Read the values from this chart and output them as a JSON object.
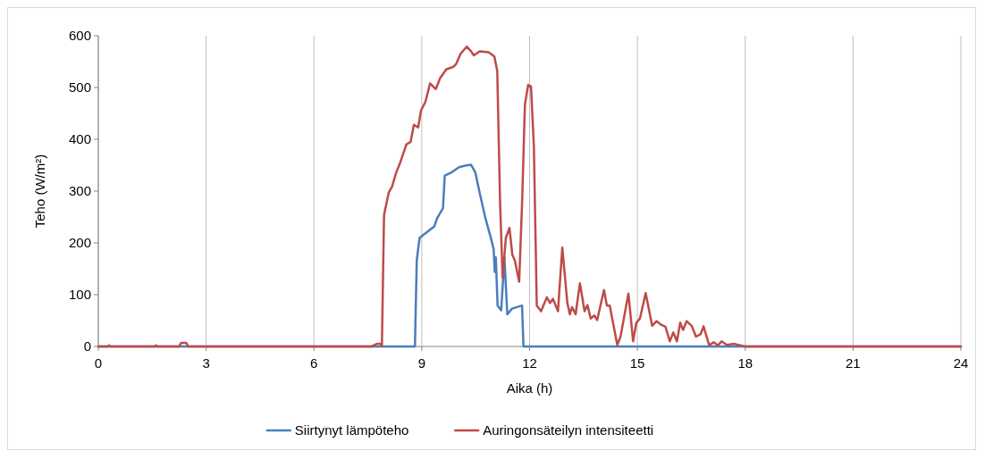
{
  "chart_data": {
    "type": "line",
    "xlabel": "Aika (h)",
    "ylabel": "Teho (W/m²)",
    "xlim": [
      0,
      24
    ],
    "xticks": [
      0,
      3,
      6,
      9,
      12,
      15,
      18,
      21,
      24
    ],
    "ylim": [
      0,
      600
    ],
    "yticks": [
      0,
      100,
      200,
      300,
      400,
      500,
      600
    ],
    "grid": "x",
    "legend": "bottom",
    "marker": "none",
    "line_style": "solid",
    "series": [
      {
        "name": "Siirtynyt lämpöteho",
        "color": "#4a7ebb",
        "x": [
          0,
          8.81,
          8.86,
          8.94,
          9.15,
          9.35,
          9.43,
          9.59,
          9.64,
          9.8,
          10.04,
          10.2,
          10.37,
          10.49,
          10.61,
          10.77,
          10.92,
          11.0,
          11.03,
          11.06,
          11.11,
          11.21,
          11.3,
          11.38,
          11.51,
          11.79,
          11.83,
          24
        ],
        "values": [
          0,
          0,
          166,
          210,
          221,
          232,
          248,
          267,
          330,
          335,
          346,
          349,
          351,
          336,
          297,
          248,
          210,
          188,
          144,
          172,
          79,
          70,
          172,
          62,
          73,
          79,
          0,
          0
        ]
      },
      {
        "name": "Auringonsäteilyn intensiteetti",
        "color": "#be4b48",
        "x": [
          0,
          0.25,
          0.3,
          0.35,
          1.55,
          1.6,
          1.65,
          2.25,
          2.3,
          2.45,
          2.5,
          7.6,
          7.75,
          7.85,
          7.89,
          7.95,
          8.08,
          8.17,
          8.29,
          8.41,
          8.57,
          8.69,
          8.78,
          8.9,
          8.98,
          9.1,
          9.23,
          9.39,
          9.51,
          9.68,
          9.88,
          9.96,
          10.08,
          10.25,
          10.37,
          10.45,
          10.61,
          10.86,
          11.02,
          11.1,
          11.18,
          11.25,
          11.34,
          11.44,
          11.52,
          11.59,
          11.71,
          11.79,
          11.87,
          11.96,
          12.04,
          12.12,
          12.2,
          12.32,
          12.48,
          12.57,
          12.65,
          12.79,
          12.91,
          13.05,
          13.12,
          13.18,
          13.28,
          13.4,
          13.53,
          13.61,
          13.7,
          13.8,
          13.88,
          14.07,
          14.15,
          14.23,
          14.44,
          14.53,
          14.75,
          14.88,
          14.97,
          15.07,
          15.23,
          15.41,
          15.53,
          15.66,
          15.78,
          15.9,
          16.0,
          16.1,
          16.19,
          16.27,
          16.37,
          16.51,
          16.63,
          16.76,
          16.84,
          17.0,
          17.12,
          17.24,
          17.34,
          17.49,
          17.7,
          18,
          24
        ],
        "values": [
          0,
          0,
          2,
          0,
          0,
          2,
          0,
          0,
          7,
          7,
          0,
          0,
          5,
          5,
          0,
          254,
          297,
          308,
          336,
          357,
          390,
          395,
          428,
          423,
          456,
          472,
          508,
          497,
          518,
          535,
          540,
          546,
          565,
          579,
          570,
          562,
          570,
          568,
          560,
          532,
          275,
          133,
          210,
          229,
          177,
          166,
          125,
          275,
          467,
          505,
          502,
          385,
          79,
          68,
          95,
          84,
          92,
          68,
          191,
          84,
          62,
          76,
          62,
          122,
          68,
          80,
          54,
          60,
          51,
          109,
          79,
          79,
          3,
          19,
          102,
          10,
          46,
          54,
          103,
          40,
          49,
          42,
          38,
          10,
          27,
          10,
          46,
          32,
          49,
          40,
          19,
          24,
          39,
          2,
          8,
          2,
          10,
          3,
          5,
          0,
          0
        ]
      }
    ]
  }
}
